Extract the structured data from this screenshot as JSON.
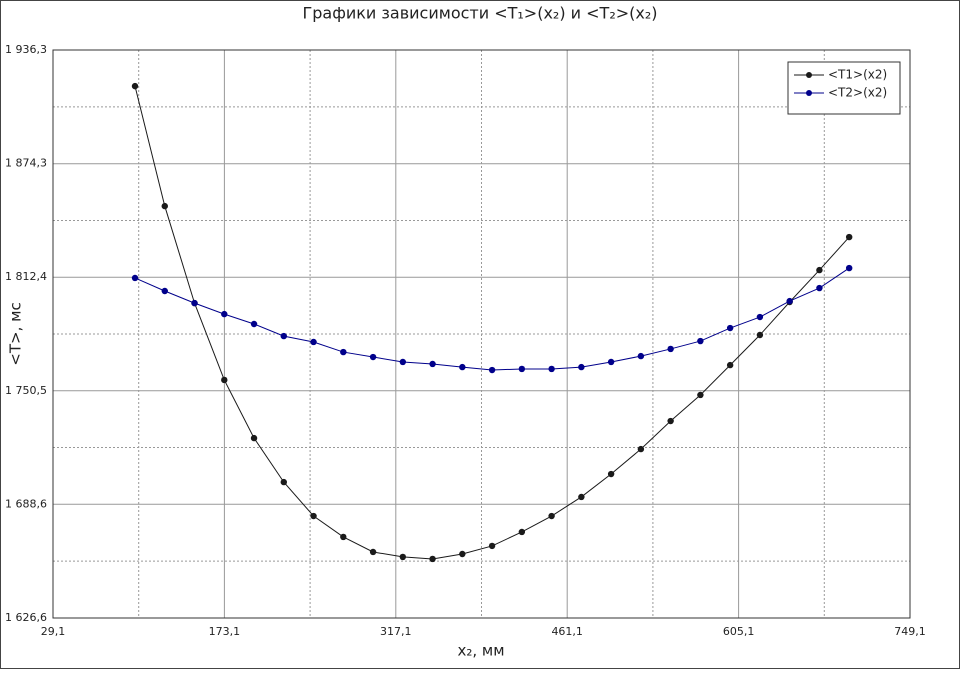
{
  "chart_data": {
    "type": "line",
    "title": "Графики зависимости <T₁>(x₂) и <T₂>(x₂)",
    "x_label": "x₂, мм",
    "y_label": "<T>, мс",
    "x": [
      98,
      123,
      148,
      173,
      198,
      223,
      248,
      273,
      298,
      323,
      348,
      373,
      398,
      423,
      448,
      473,
      498,
      523,
      548,
      573,
      598,
      623,
      648,
      673,
      698
    ],
    "series": [
      {
        "name": "<T1>(x2)",
        "color": "#1a1a1a",
        "values": [
          1916.6,
          1851.2,
          1798.3,
          1756.4,
          1724.7,
          1700.7,
          1682.2,
          1670.8,
          1662.6,
          1659.9,
          1658.8,
          1661.5,
          1665.9,
          1673.5,
          1682.2,
          1692.6,
          1705.1,
          1718.7,
          1734.0,
          1748.2,
          1764.5,
          1780.9,
          1798.9,
          1816.3,
          1834.3
        ]
      },
      {
        "name": "<T2>(x2)",
        "color": "#00008b",
        "values": [
          1812.0,
          1804.9,
          1798.3,
          1792.3,
          1786.9,
          1780.3,
          1777.1,
          1771.6,
          1768.9,
          1766.2,
          1765.1,
          1763.4,
          1761.8,
          1762.4,
          1762.4,
          1763.4,
          1766.2,
          1769.4,
          1773.3,
          1777.6,
          1784.7,
          1790.7,
          1799.4,
          1806.5,
          1817.4
        ]
      }
    ],
    "xlim": [
      29.1,
      749.1
    ],
    "xticks": [
      {
        "value": 29.1,
        "label": "29,1"
      },
      {
        "value": 173.1,
        "label": "173,1"
      },
      {
        "value": 317.1,
        "label": "317,1"
      },
      {
        "value": 461.1,
        "label": "461,1"
      },
      {
        "value": 605.1,
        "label": "605,1"
      },
      {
        "value": 749.1,
        "label": "749,1"
      }
    ],
    "ylim": [
      1626.6,
      1936.3
    ],
    "yticks": [
      {
        "value": 1626.6,
        "label": "1 626,6"
      },
      {
        "value": 1688.6,
        "label": "1 688,6"
      },
      {
        "value": 1750.5,
        "label": "1 750,5"
      },
      {
        "value": 1812.4,
        "label": "1 812,4"
      },
      {
        "value": 1874.3,
        "label": "1 874,3"
      },
      {
        "value": 1936.3,
        "label": "1 936,3"
      }
    ],
    "grid": true,
    "minor_grid": true,
    "legend": "upper right"
  }
}
